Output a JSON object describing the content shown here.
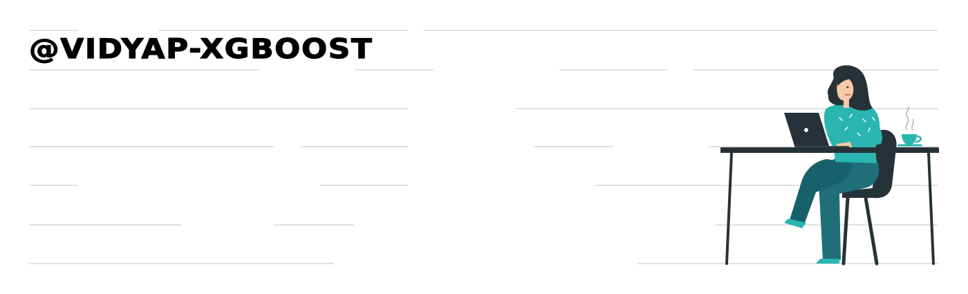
{
  "banner": {
    "handle": "@VIDYAP-XGBOOST",
    "illustration_icon": "woman-working-on-laptop-icon",
    "coffee_icon": "steaming-coffee-cup-icon",
    "laptop_icon": "laptop-icon"
  },
  "colors": {
    "background": "#ffffff",
    "text": "#000000",
    "rule_lines": "#e2e2e2",
    "accent_teal": "#2bb5b0",
    "dark_teal": "#1f6f78",
    "charcoal": "#263238"
  }
}
